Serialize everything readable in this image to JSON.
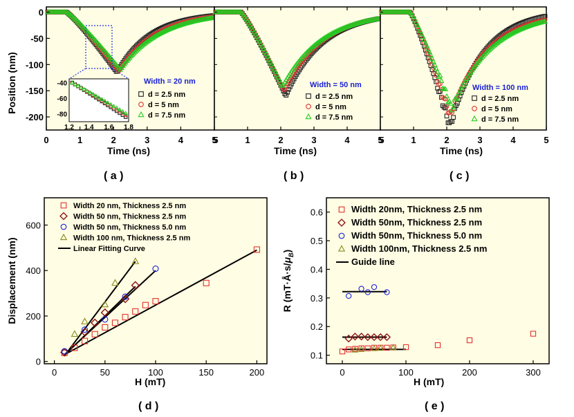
{
  "chart_data": [
    {
      "type": "scatter",
      "panel": "(a)",
      "xlabel": "Time (ns)",
      "ylabel": "Position (nm)",
      "xlim": [
        0,
        5
      ],
      "ylim": [
        -225,
        10
      ],
      "xticks": [
        "0",
        "1",
        "2",
        "3",
        "4",
        "5"
      ],
      "yticks": [
        "0",
        "-50",
        "-100",
        "-150",
        "-200"
      ],
      "legend_title": "Width = 20 nm",
      "legend_title_color": "#1a22d6",
      "series": [
        {
          "name": "d = 2.5 nm",
          "color": "#222222",
          "marker": "square",
          "t0": 0.6,
          "tmin": 2.1,
          "vmin": -115,
          "tau": 1.0,
          "plateau": 0
        },
        {
          "name": "d = 5 nm",
          "color": "#e23030",
          "marker": "circle",
          "t0": 0.6,
          "tmin": 2.15,
          "vmin": -113,
          "tau": 1.1,
          "plateau": 0
        },
        {
          "name": "d = 7.5 nm",
          "color": "#22cc22",
          "marker": "triangle",
          "t0": 0.6,
          "tmin": 2.2,
          "vmin": -110,
          "tau": 1.2,
          "plateau": 0
        }
      ],
      "inset": {
        "xlim": [
          1.2,
          1.8
        ],
        "ylim": [
          -90,
          -35
        ],
        "xticks": [
          "1.2",
          "1.4",
          "1.6",
          "1.8"
        ],
        "yticks": [
          "-40",
          "-60",
          "-80"
        ]
      }
    },
    {
      "type": "scatter",
      "panel": "(b)",
      "xlabel": "Time (ns)",
      "xlim": [
        0,
        5
      ],
      "ylim": [
        -225,
        10
      ],
      "xticks": [
        "0",
        "1",
        "2",
        "3",
        "4",
        "5"
      ],
      "legend_title": "Width = 50 nm",
      "legend_title_color": "#1a22d6",
      "series": [
        {
          "name": "d = 2.5 nm",
          "color": "#222222",
          "marker": "square",
          "t0": 0.8,
          "tmin": 2.15,
          "vmin": -160,
          "tau": 1.1,
          "plateau": 0
        },
        {
          "name": "d = 5 nm",
          "color": "#e23030",
          "marker": "circle",
          "t0": 0.8,
          "tmin": 2.1,
          "vmin": -150,
          "tau": 1.15,
          "plateau": 0
        },
        {
          "name": "d = 7.5 nm",
          "color": "#22cc22",
          "marker": "triangle",
          "t0": 0.8,
          "tmin": 2.05,
          "vmin": -142,
          "tau": 1.2,
          "plateau": 0
        }
      ]
    },
    {
      "type": "scatter",
      "panel": "(c)",
      "xlabel": "Time (ns)",
      "xlim": [
        0,
        5
      ],
      "ylim": [
        -225,
        10
      ],
      "xticks": [
        "0",
        "1",
        "2",
        "3",
        "4",
        "5"
      ],
      "legend_title": "Width = 100 nm",
      "legend_title_color": "#1a22d6",
      "series": [
        {
          "name": "d = 2.5 nm",
          "color": "#222222",
          "marker": "square",
          "t0": 0.9,
          "tmin": 2.1,
          "vmin": -218,
          "tau": 1.0,
          "plateau": 5
        },
        {
          "name": "d = 5 nm",
          "color": "#e23030",
          "marker": "circle",
          "t0": 0.9,
          "tmin": 2.1,
          "vmin": -198,
          "tau": 1.1,
          "plateau": 0
        },
        {
          "name": "d = 7.5 nm",
          "color": "#22cc22",
          "marker": "triangle",
          "t0": 0.9,
          "tmin": 2.15,
          "vmin": -185,
          "tau": 1.2,
          "plateau": 0
        }
      ]
    },
    {
      "type": "scatter",
      "panel": "(d)",
      "xlabel": "H (mT)",
      "ylabel": "Displacement (nm)",
      "xlim": [
        -10,
        210
      ],
      "ylim": [
        -10,
        720
      ],
      "xticks": [
        0,
        50,
        100,
        150,
        200
      ],
      "yticks": [
        0,
        200,
        400,
        600
      ],
      "series": [
        {
          "name": "Width 20 nm, Thickness 2.5 nm",
          "color": "#e23030",
          "marker": "square",
          "x": [
            10,
            20,
            30,
            40,
            50,
            60,
            70,
            80,
            90,
            100,
            150,
            200
          ],
          "y": [
            38,
            60,
            90,
            120,
            150,
            170,
            195,
            220,
            248,
            265,
            345,
            492
          ]
        },
        {
          "name": "Width 50 nm, Thickness 2.5 nm",
          "color": "#8b1414",
          "marker": "diamond",
          "x": [
            10,
            30,
            40,
            50,
            70,
            80
          ],
          "y": [
            40,
            130,
            170,
            215,
            275,
            335
          ]
        },
        {
          "name": "Width 50 nm, Thickness 5.0 nm",
          "color": "#1a22d6",
          "marker": "circle",
          "x": [
            10,
            30,
            50,
            70,
            100
          ],
          "y": [
            45,
            140,
            185,
            285,
            408
          ]
        },
        {
          "name": "Width 100 nm, Thickness 2.5 nm",
          "color": "#8a8a1a",
          "marker": "triangle",
          "x": [
            20,
            30,
            50,
            60,
            80
          ],
          "y": [
            120,
            175,
            250,
            345,
            440
          ]
        }
      ],
      "fit_label": "Linear Fitting Curve",
      "fit_lines": [
        {
          "x": [
            10,
            200
          ],
          "y": [
            30,
            490
          ]
        },
        {
          "x": [
            10,
            80
          ],
          "y": [
            28,
            330
          ]
        },
        {
          "x": [
            10,
            100
          ],
          "y": [
            30,
            400
          ]
        },
        {
          "x": [
            10,
            80
          ],
          "y": [
            25,
            440
          ]
        }
      ]
    },
    {
      "type": "scatter",
      "panel": "(e)",
      "xlabel": "H (mT)",
      "ylabel": "R (mT·Å·s/μB)",
      "xlim": [
        -25,
        325
      ],
      "ylim": [
        0.07,
        0.65
      ],
      "xticks": [
        0,
        100,
        200,
        300
      ],
      "yticks": [
        "0.1",
        "0.2",
        "0.3",
        "0.4",
        "0.5",
        "0.6"
      ],
      "series": [
        {
          "name": "Width 20nm, Thickness 2.5 nm",
          "color": "#e23030",
          "marker": "square",
          "x": [
            0,
            10,
            20,
            30,
            40,
            50,
            60,
            70,
            80,
            100,
            150,
            200,
            300
          ],
          "y": [
            0.113,
            0.12,
            0.122,
            0.124,
            0.124,
            0.126,
            0.126,
            0.126,
            0.127,
            0.128,
            0.135,
            0.152,
            0.175
          ]
        },
        {
          "name": "Width 50nm, Thickness 2.5 nm",
          "color": "#8b1414",
          "marker": "diamond",
          "x": [
            10,
            20,
            30,
            40,
            50,
            60,
            70
          ],
          "y": [
            0.158,
            0.165,
            0.165,
            0.163,
            0.163,
            0.163,
            0.163
          ]
        },
        {
          "name": "Width 50nm, Thickness 5.0 nm",
          "color": "#1a22d6",
          "marker": "circle",
          "x": [
            10,
            30,
            40,
            50,
            70
          ],
          "y": [
            0.307,
            0.332,
            0.32,
            0.338,
            0.32
          ]
        },
        {
          "name": "Width 100nm, Thickness 2.5 nm",
          "color": "#8a8a1a",
          "marker": "triangle",
          "x": [
            20,
            30,
            50,
            60,
            80
          ],
          "y": [
            0.118,
            0.12,
            0.123,
            0.124,
            0.126
          ]
        }
      ],
      "guide_label": "Guide line",
      "guide_lines": [
        {
          "x": [
            0,
            100
          ],
          "y": [
            0.12,
            0.12
          ]
        },
        {
          "x": [
            0,
            70
          ],
          "y": [
            0.163,
            0.163
          ]
        },
        {
          "x": [
            0,
            70
          ],
          "y": [
            0.322,
            0.322
          ]
        }
      ]
    }
  ],
  "panel_labels": [
    "( a )",
    "( b )",
    "( c )",
    "( d )",
    "( e )"
  ]
}
